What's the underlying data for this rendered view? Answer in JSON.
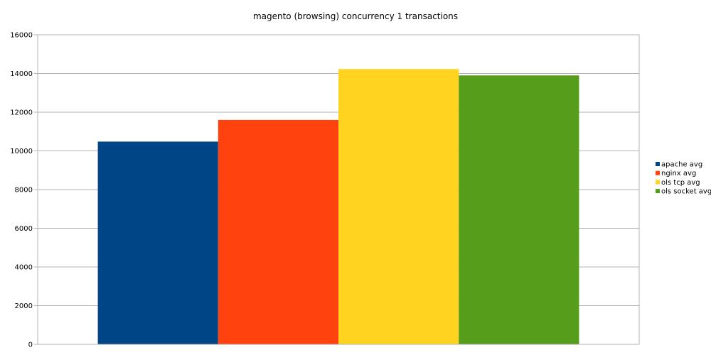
{
  "chart_data": {
    "type": "bar",
    "title": "magento (browsing) concurrency 1 transactions",
    "xlabel": "",
    "ylabel": "",
    "categories": [
      ""
    ],
    "ylim": [
      0,
      16000
    ],
    "yticks": [
      0,
      2000,
      4000,
      6000,
      8000,
      10000,
      12000,
      14000,
      16000
    ],
    "grid": true,
    "legend_position": "right",
    "series": [
      {
        "name": "apache avg",
        "values": [
          10480
        ],
        "color": "#004586"
      },
      {
        "name": "nginx avg",
        "values": [
          11600
        ],
        "color": "#ff420e"
      },
      {
        "name": "ols tcp avg",
        "values": [
          14230
        ],
        "color": "#ffd320"
      },
      {
        "name": "ols socket avg",
        "values": [
          13900
        ],
        "color": "#579d1c"
      }
    ]
  }
}
